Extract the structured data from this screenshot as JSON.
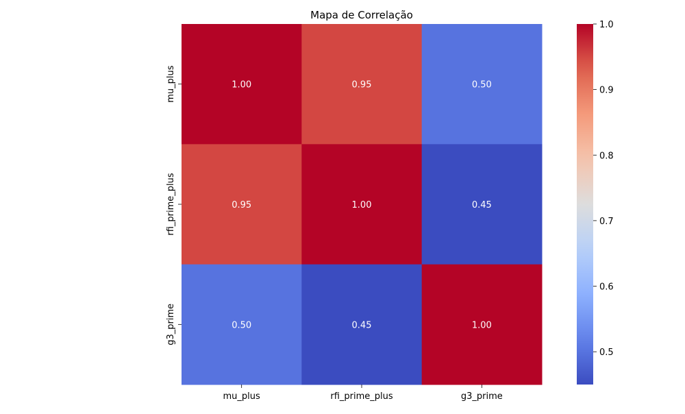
{
  "chart_data": {
    "type": "heatmap",
    "title": "Mapa de Correlação",
    "xlabel": "",
    "ylabel": "",
    "x_categories": [
      "mu_plus",
      "rfi_prime_plus",
      "g3_prime"
    ],
    "y_categories": [
      "mu_plus",
      "rfi_prime_plus",
      "g3_prime"
    ],
    "values": [
      [
        1.0,
        0.95,
        0.5
      ],
      [
        0.95,
        1.0,
        0.45
      ],
      [
        0.5,
        0.45,
        1.0
      ]
    ],
    "cell_labels": [
      [
        "1.00",
        "0.95",
        "0.50"
      ],
      [
        "0.95",
        "1.00",
        "0.45"
      ],
      [
        "0.50",
        "0.45",
        "1.00"
      ]
    ],
    "colormap": "coolwarm",
    "vmin": 0.45,
    "vmax": 1.0,
    "colorbar_ticks": [
      0.5,
      0.6,
      0.7,
      0.8,
      0.9,
      1.0
    ],
    "colorbar_tick_labels": [
      "0.5",
      "0.6",
      "0.7",
      "0.8",
      "0.9",
      "1.0"
    ],
    "grid": false,
    "legend": "colorbar-right"
  }
}
